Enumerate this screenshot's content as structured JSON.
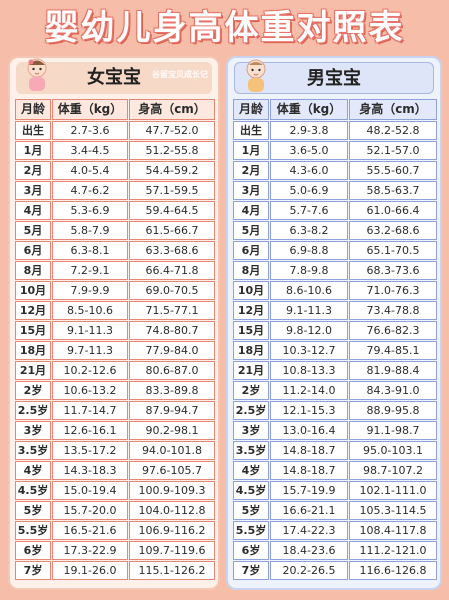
{
  "title": "婴幼儿身高体重对照表",
  "watermark": "谷留宝贝成长记",
  "headers": [
    "月龄",
    "体重（kg）",
    "身高（cm）"
  ],
  "girl": {
    "label": "女宝宝",
    "rows": [
      [
        "出生",
        "2.7-3.6",
        "47.7-52.0"
      ],
      [
        "1月",
        "3.4-4.5",
        "51.2-55.8"
      ],
      [
        "2月",
        "4.0-5.4",
        "54.4-59.2"
      ],
      [
        "3月",
        "4.7-6.2",
        "57.1-59.5"
      ],
      [
        "4月",
        "5.3-6.9",
        "59.4-64.5"
      ],
      [
        "5月",
        "5.8-7.9",
        "61.5-66.7"
      ],
      [
        "6月",
        "6.3-8.1",
        "63.3-68.6"
      ],
      [
        "8月",
        "7.2-9.1",
        "66.4-71.8"
      ],
      [
        "10月",
        "7.9-9.9",
        "69.0-70.5"
      ],
      [
        "12月",
        "8.5-10.6",
        "71.5-77.1"
      ],
      [
        "15月",
        "9.1-11.3",
        "74.8-80.7"
      ],
      [
        "18月",
        "9.7-11.3",
        "77.9-84.0"
      ],
      [
        "21月",
        "10.2-12.6",
        "80.6-87.0"
      ],
      [
        "2岁",
        "10.6-13.2",
        "83.3-89.8"
      ],
      [
        "2.5岁",
        "11.7-14.7",
        "87.9-94.7"
      ],
      [
        "3岁",
        "12.6-16.1",
        "90.2-98.1"
      ],
      [
        "3.5岁",
        "13.5-17.2",
        "94.0-101.8"
      ],
      [
        "4岁",
        "14.3-18.3",
        "97.6-105.7"
      ],
      [
        "4.5岁",
        "15.0-19.4",
        "100.9-109.3"
      ],
      [
        "5岁",
        "15.7-20.0",
        "104.0-112.8"
      ],
      [
        "5.5岁",
        "16.5-21.6",
        "106.9-116.2"
      ],
      [
        "6岁",
        "17.3-22.9",
        "109.7-119.6"
      ],
      [
        "7岁",
        "19.1-26.0",
        "115.1-126.2"
      ]
    ]
  },
  "boy": {
    "label": "男宝宝",
    "rows": [
      [
        "出生",
        "2.9-3.8",
        "48.2-52.8"
      ],
      [
        "1月",
        "3.6-5.0",
        "52.1-57.0"
      ],
      [
        "2月",
        "4.3-6.0",
        "55.5-60.7"
      ],
      [
        "3月",
        "5.0-6.9",
        "58.5-63.7"
      ],
      [
        "4月",
        "5.7-7.6",
        "61.0-66.4"
      ],
      [
        "5月",
        "6.3-8.2",
        "63.2-68.6"
      ],
      [
        "6月",
        "6.9-8.8",
        "65.1-70.5"
      ],
      [
        "8月",
        "7.8-9.8",
        "68.3-73.6"
      ],
      [
        "10月",
        "8.6-10.6",
        "71.0-76.3"
      ],
      [
        "12月",
        "9.1-11.3",
        "73.4-78.8"
      ],
      [
        "15月",
        "9.8-12.0",
        "76.6-82.3"
      ],
      [
        "18月",
        "10.3-12.7",
        "79.4-85.1"
      ],
      [
        "21月",
        "10.8-13.3",
        "81.9-88.4"
      ],
      [
        "2岁",
        "11.2-14.0",
        "84.3-91.0"
      ],
      [
        "2.5岁",
        "12.1-15.3",
        "88.9-95.8"
      ],
      [
        "3岁",
        "13.0-16.4",
        "91.1-98.7"
      ],
      [
        "3.5岁",
        "14.8-18.7",
        "95.0-103.1"
      ],
      [
        "4岁",
        "14.8-18.7",
        "98.7-107.2"
      ],
      [
        "4.5岁",
        "15.7-19.9",
        "102.1-111.0"
      ],
      [
        "5岁",
        "16.6-21.1",
        "105.3-114.5"
      ],
      [
        "5.5岁",
        "17.4-22.3",
        "108.4-117.8"
      ],
      [
        "6岁",
        "18.4-23.6",
        "111.2-121.0"
      ],
      [
        "7岁",
        "20.2-26.5",
        "116.6-126.8"
      ]
    ]
  }
}
